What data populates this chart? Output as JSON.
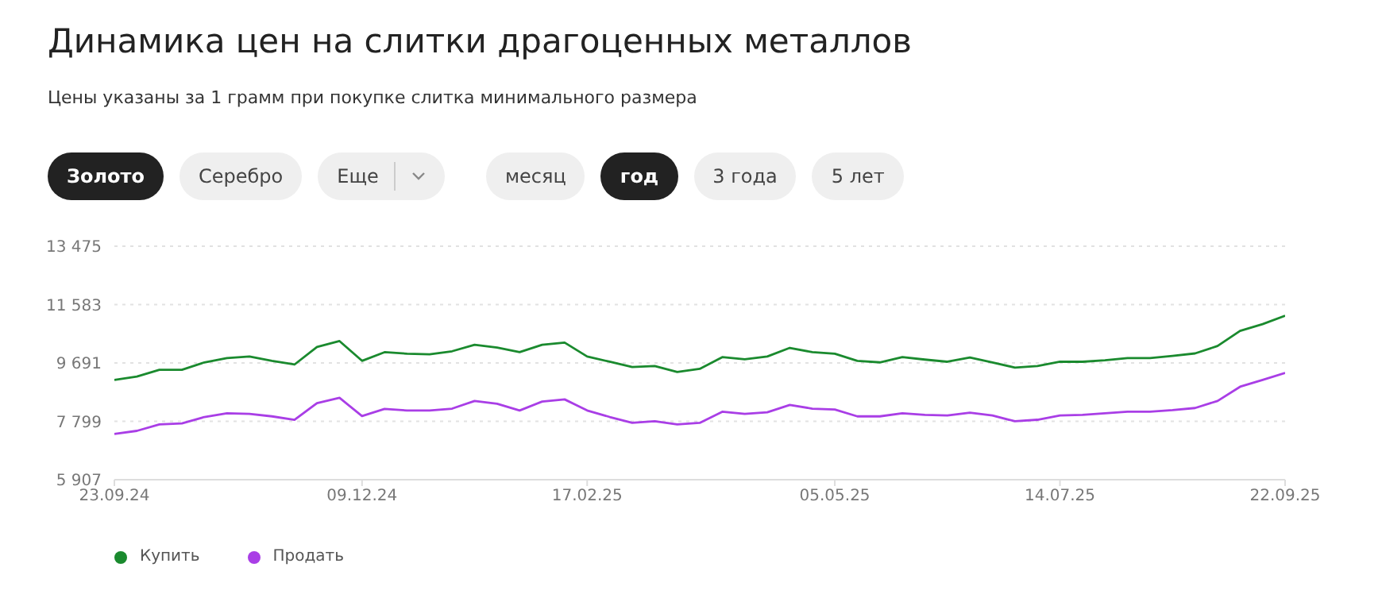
{
  "chart_data": {
    "type": "line",
    "title": "Динамика цен на слитки драгоценных металлов",
    "subtitle": "Цены указаны за 1 грамм при покупке слитка минимального размера",
    "annotations": [
      "Золото",
      "Серебро",
      "Еще",
      "месяц",
      "год",
      "3 года",
      "5 лет"
    ],
    "x": [
      "2024-09-23",
      "2024-09-30",
      "2024-10-07",
      "2024-10-14",
      "2024-10-21",
      "2024-10-28",
      "2024-11-04",
      "2024-11-11",
      "2024-11-18",
      "2024-11-25",
      "2024-12-02",
      "2024-12-09",
      "2024-12-16",
      "2024-12-23",
      "2024-12-30",
      "2025-01-06",
      "2025-01-13",
      "2025-01-20",
      "2025-01-27",
      "2025-02-03",
      "2025-02-10",
      "2025-02-17",
      "2025-02-24",
      "2025-03-03",
      "2025-03-10",
      "2025-03-17",
      "2025-03-24",
      "2025-03-31",
      "2025-04-07",
      "2025-04-14",
      "2025-04-21",
      "2025-04-28",
      "2025-05-05",
      "2025-05-12",
      "2025-05-19",
      "2025-05-26",
      "2025-06-02",
      "2025-06-09",
      "2025-06-16",
      "2025-06-23",
      "2025-06-30",
      "2025-07-07",
      "2025-07-14",
      "2025-07-21",
      "2025-07-28",
      "2025-08-04",
      "2025-08-11",
      "2025-08-18",
      "2025-08-25",
      "2025-09-01",
      "2025-09-08",
      "2025-09-15",
      "2025-09-22"
    ],
    "series": [
      {
        "name": "Купить",
        "color": "#1a8a2e",
        "values": [
          9140,
          9250,
          9470,
          9470,
          9710,
          9850,
          9900,
          9760,
          9640,
          10210,
          10400,
          9760,
          10040,
          9990,
          9970,
          10070,
          10280,
          10190,
          10040,
          10280,
          10350,
          9900,
          9730,
          9560,
          9590,
          9400,
          9500,
          9880,
          9810,
          9900,
          10180,
          10040,
          9990,
          9760,
          9710,
          9880,
          9800,
          9730,
          9870,
          9710,
          9540,
          9590,
          9730,
          9730,
          9780,
          9850,
          9850,
          9920,
          10000,
          10240,
          10730,
          10950,
          11220
        ]
      },
      {
        "name": "Продать",
        "color": "#a93ee6",
        "values": [
          7390,
          7490,
          7700,
          7730,
          7940,
          8060,
          8040,
          7960,
          7850,
          8390,
          8560,
          7970,
          8200,
          8150,
          8150,
          8210,
          8460,
          8370,
          8150,
          8440,
          8510,
          8150,
          7940,
          7750,
          7800,
          7700,
          7750,
          8110,
          8040,
          8090,
          8330,
          8210,
          8180,
          7960,
          7960,
          8060,
          8010,
          7990,
          8080,
          7990,
          7800,
          7850,
          7990,
          8010,
          8060,
          8110,
          8110,
          8160,
          8230,
          8460,
          8920,
          9140,
          9370
        ]
      }
    ],
    "xlim": [
      "2024-09-23",
      "2025-09-22"
    ],
    "xticks": [
      {
        "value": "2024-09-23",
        "label": "23.09.24"
      },
      {
        "value": "2024-12-09",
        "label": "09.12.24"
      },
      {
        "value": "2025-02-17",
        "label": "17.02.25"
      },
      {
        "value": "2025-05-05",
        "label": "05.05.25"
      },
      {
        "value": "2025-07-14",
        "label": "14.07.25"
      },
      {
        "value": "2025-09-22",
        "label": "22.09.25"
      }
    ],
    "ylim": [
      5907,
      13475
    ],
    "yticks": [
      {
        "value": 5907,
        "label": "5 907"
      },
      {
        "value": 7799,
        "label": "7 799"
      },
      {
        "value": 9691,
        "label": "9 691"
      },
      {
        "value": 11583,
        "label": "11 583"
      },
      {
        "value": 13475,
        "label": "13 475"
      }
    ],
    "grid": "y",
    "legend": "bottom left"
  }
}
